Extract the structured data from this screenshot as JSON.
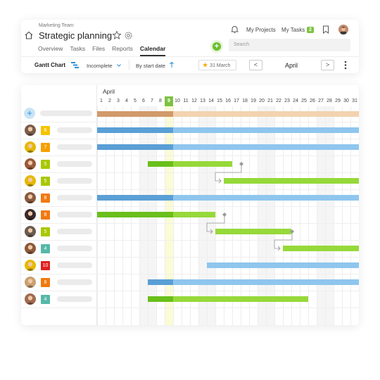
{
  "header": {
    "team": "Marketing Team",
    "title": "Strategic planning",
    "tabs": [
      "Overview",
      "Tasks",
      "Files",
      "Reports",
      "Calendar"
    ],
    "active_tab": "Calendar",
    "my_projects": "My Projects",
    "my_tasks": "My Tasks",
    "my_tasks_count": "2",
    "search_placeholder": "Search"
  },
  "toolbar": {
    "view": "Gantt Chart",
    "filter": "Incomplete",
    "sort": "By start date",
    "date": "31 March",
    "prev": "<",
    "next": ">",
    "month": "April"
  },
  "gantt": {
    "month": "April",
    "days": [
      "1",
      "2",
      "3",
      "4",
      "5",
      "6",
      "7",
      "8",
      "9",
      "10",
      "11",
      "12",
      "13",
      "14",
      "15",
      "16",
      "17",
      "18",
      "19",
      "20",
      "21",
      "22",
      "23",
      "24",
      "25",
      "26",
      "27",
      "28",
      "29",
      "30",
      "31"
    ],
    "today": "9",
    "colors": {
      "summary_done": "#d19a6a",
      "summary_rest": "#f3d3b0",
      "blue_done": "#5a9fd6",
      "blue_rest": "#8fc6ee",
      "green_done": "#6abf1a",
      "green_rest": "#96d93a"
    },
    "rows": [
      {
        "badge": "6",
        "badge_color": "#f5c400",
        "avatar": "#7a5c4a"
      },
      {
        "badge": "7",
        "badge_color": "#f5a000",
        "avatar": "#e6b800"
      },
      {
        "badge": "5",
        "badge_color": "#a8c800",
        "avatar": "#9a5a3a"
      },
      {
        "badge": "5",
        "badge_color": "#a8c800",
        "avatar": "#e6b800"
      },
      {
        "badge": "8",
        "badge_color": "#f07a10",
        "avatar": "#8a5a40"
      },
      {
        "badge": "8",
        "badge_color": "#f07a10",
        "avatar": "#3a2a2a"
      },
      {
        "badge": "5",
        "badge_color": "#a8c800",
        "avatar": "#6a5a50"
      },
      {
        "badge": "4",
        "badge_color": "#55b8a8",
        "avatar": "#8a5a3a"
      },
      {
        "badge": "10",
        "badge_color": "#e02020",
        "avatar": "#e6b800"
      },
      {
        "badge": "8",
        "badge_color": "#f07a10",
        "avatar": "#caa070"
      },
      {
        "badge": "4",
        "badge_color": "#55b8a8",
        "avatar": "#a06a50"
      }
    ]
  }
}
